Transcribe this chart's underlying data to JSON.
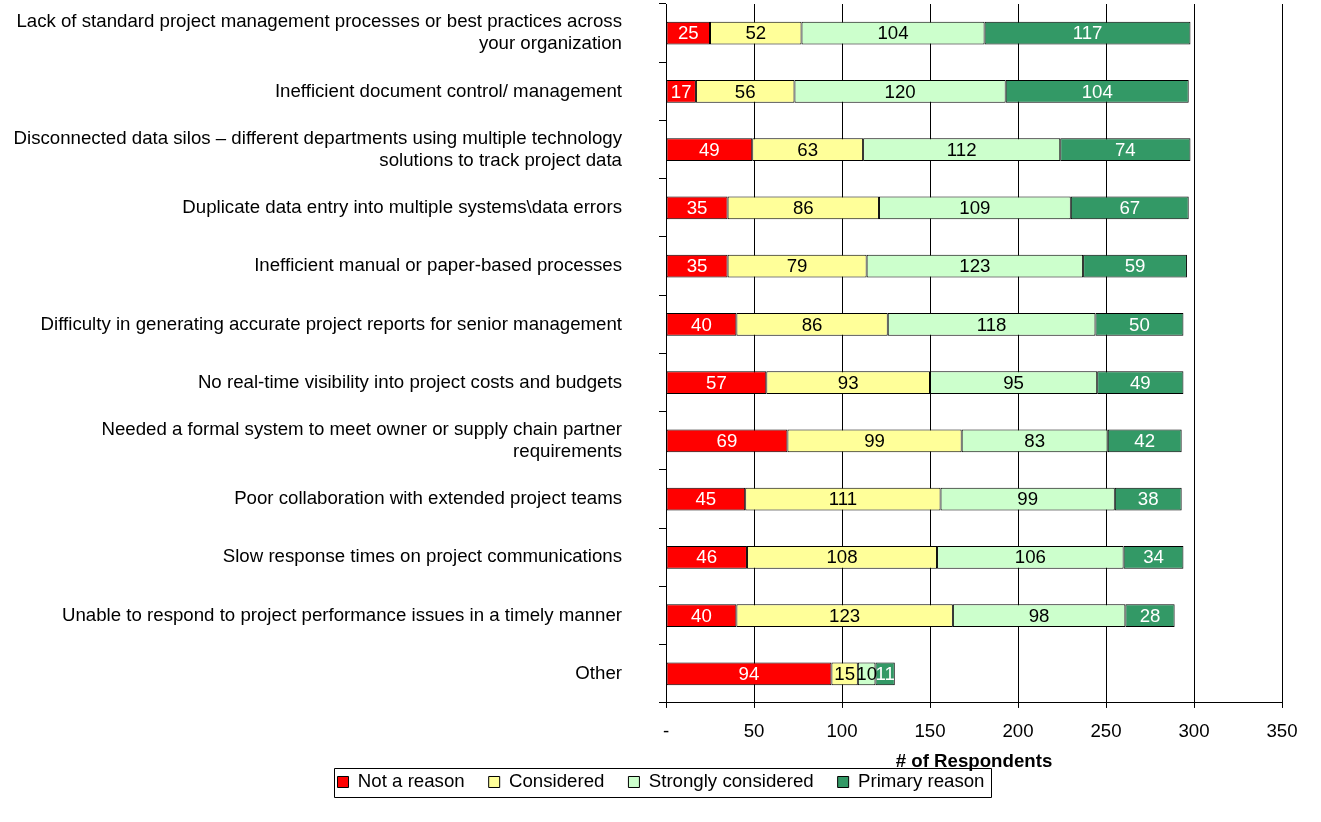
{
  "chart_data": {
    "type": "bar",
    "orientation": "horizontal",
    "stacked": true,
    "xlabel": "# of Respondents",
    "categories": [
      "Lack of standard project management processes or best practices across your organization",
      "Inefficient document control/ management",
      "Disconnected data silos – different departments using multiple technology solutions to track project data",
      "Duplicate data entry into multiple systems\\data errors",
      "Inefficient manual or paper-based processes",
      "Difficulty in generating accurate project reports for senior management",
      "No real-time visibility into project costs and budgets",
      "Needed a formal system to meet owner or supply chain partner requirements",
      "Poor collaboration with extended project teams",
      "Slow response times on project communications",
      "Unable to respond to project performance issues in a timely manner",
      "Other"
    ],
    "series": [
      {
        "name": "Not a reason",
        "color": "#ff0000",
        "values": [
          25,
          17,
          49,
          35,
          35,
          40,
          57,
          69,
          45,
          46,
          40,
          94
        ]
      },
      {
        "name": "Considered",
        "color": "#ffff99",
        "values": [
          52,
          56,
          63,
          86,
          79,
          86,
          93,
          99,
          111,
          108,
          123,
          15
        ]
      },
      {
        "name": "Strongly considered",
        "color": "#ccffcc",
        "values": [
          104,
          120,
          112,
          109,
          123,
          118,
          95,
          83,
          99,
          106,
          98,
          10
        ]
      },
      {
        "name": "Primary reason",
        "color": "#339966",
        "values": [
          117,
          104,
          74,
          67,
          59,
          50,
          49,
          42,
          38,
          34,
          28,
          11
        ]
      }
    ],
    "xlim": [
      0,
      350
    ],
    "xticks": [
      {
        "value": 0,
        "label": "-"
      },
      50,
      100,
      150,
      200,
      250,
      300,
      350
    ],
    "grid": "x",
    "legend": "bottom",
    "data_labels": true
  }
}
